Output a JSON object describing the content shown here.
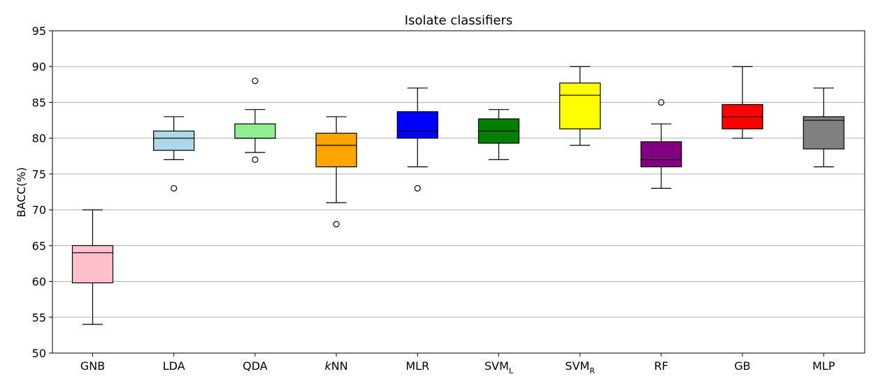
{
  "chart_data": {
    "type": "box",
    "title": "Isolate classifiers",
    "ylabel": "BACC(%)",
    "xlabel": "",
    "ylim": [
      50,
      95
    ],
    "yticks": [
      50,
      55,
      60,
      65,
      70,
      75,
      80,
      85,
      90,
      95
    ],
    "grid": "horizontal",
    "legend": "none",
    "categories": [
      {
        "label": "GNB",
        "base": "GNB",
        "sub": "",
        "italic_prefix": "",
        "color": "#ffc0cb",
        "whisker_low": 54,
        "q1": 59.8,
        "median": 64,
        "q3": 65,
        "whisker_high": 70,
        "outliers": []
      },
      {
        "label": "LDA",
        "base": "LDA",
        "sub": "",
        "italic_prefix": "",
        "color": "#add8e6",
        "whisker_low": 77,
        "q1": 78.3,
        "median": 80,
        "q3": 81,
        "whisker_high": 83,
        "outliers": [
          73
        ]
      },
      {
        "label": "QDA",
        "base": "QDA",
        "sub": "",
        "italic_prefix": "",
        "color": "#90ee90",
        "whisker_low": 78,
        "q1": 80,
        "median": 80,
        "q3": 82,
        "whisker_high": 84,
        "outliers": [
          88,
          77
        ]
      },
      {
        "label": "kNN",
        "base": "NN",
        "sub": "",
        "italic_prefix": "k",
        "color": "#ffa500",
        "whisker_low": 71,
        "q1": 76,
        "median": 79,
        "q3": 80.7,
        "whisker_high": 83,
        "outliers": [
          68
        ]
      },
      {
        "label": "MLR",
        "base": "MLR",
        "sub": "",
        "italic_prefix": "",
        "color": "#0000ff",
        "whisker_low": 76,
        "q1": 80,
        "median": 81,
        "q3": 83.7,
        "whisker_high": 87,
        "outliers": [
          73
        ]
      },
      {
        "label": "SVM_L",
        "base": "SVM",
        "sub": "L",
        "italic_prefix": "",
        "color": "#008000",
        "whisker_low": 77,
        "q1": 79.3,
        "median": 81,
        "q3": 82.7,
        "whisker_high": 84,
        "outliers": []
      },
      {
        "label": "SVM_R",
        "base": "SVM",
        "sub": "R",
        "italic_prefix": "",
        "color": "#ffff00",
        "whisker_low": 79,
        "q1": 81.3,
        "median": 86,
        "q3": 87.7,
        "whisker_high": 90,
        "outliers": []
      },
      {
        "label": "RF",
        "base": "RF",
        "sub": "",
        "italic_prefix": "",
        "color": "#800080",
        "whisker_low": 73,
        "q1": 76,
        "median": 77,
        "q3": 79.5,
        "whisker_high": 82,
        "outliers": [
          85
        ]
      },
      {
        "label": "GB",
        "base": "GB",
        "sub": "",
        "italic_prefix": "",
        "color": "#ff0000",
        "whisker_low": 80,
        "q1": 81.3,
        "median": 83,
        "q3": 84.7,
        "whisker_high": 90,
        "outliers": []
      },
      {
        "label": "MLP",
        "base": "MLP",
        "sub": "",
        "italic_prefix": "",
        "color": "#808080",
        "whisker_low": 76,
        "q1": 78.5,
        "median": 82.5,
        "q3": 83,
        "whisker_high": 87,
        "outliers": []
      }
    ]
  }
}
